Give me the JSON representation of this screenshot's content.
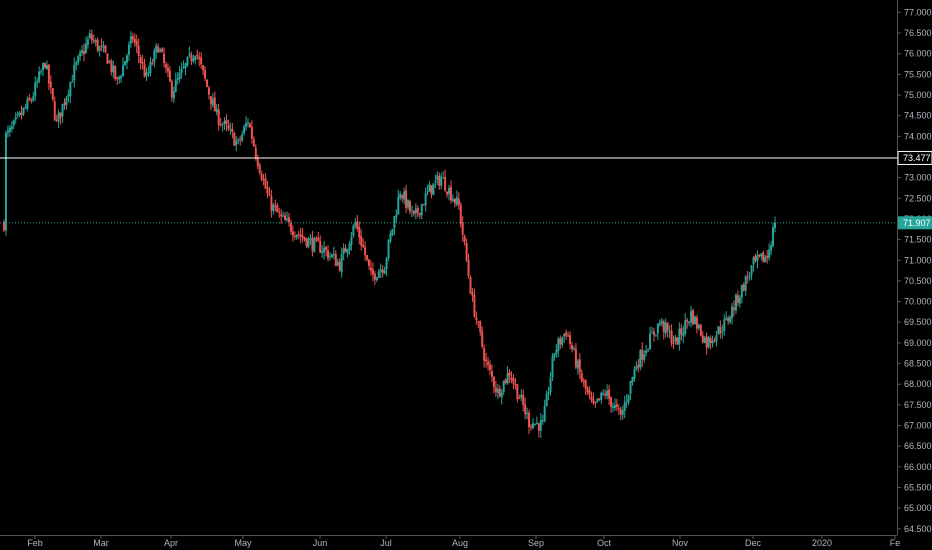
{
  "colors": {
    "background": "#000000",
    "up": "#26a69a",
    "down": "#ef5350",
    "level_line": "#ffffff",
    "price_line": "#26a69a",
    "axis_text": "#b2b5be",
    "axis_line": "#555555"
  },
  "chart_data": {
    "type": "candlestick",
    "title": "",
    "x_labels": [
      "Feb",
      "Mar",
      "Apr",
      "May",
      "Jun",
      "Jul",
      "Aug",
      "Sep",
      "Oct",
      "Nov",
      "Dec",
      "2020",
      "Fe"
    ],
    "y_ticks": [
      "77.000",
      "76.500",
      "76.000",
      "75.500",
      "75.000",
      "74.500",
      "74.000",
      "73.500",
      "73.000",
      "72.500",
      "72.000",
      "71.500",
      "71.000",
      "70.500",
      "70.000",
      "69.500",
      "69.000",
      "68.500",
      "68.000",
      "67.500",
      "67.000",
      "66.500",
      "66.000",
      "65.500",
      "65.000",
      "64.500"
    ],
    "y_range": [
      64.35,
      77.3
    ],
    "horizontal_level": {
      "value": 73.477,
      "label": "73.477"
    },
    "last_price": {
      "value": 71.907,
      "label": "71.907"
    },
    "anchors": [
      [
        74.0,
        1
      ],
      [
        74.1,
        3
      ],
      [
        74.9,
        14
      ],
      [
        75.8,
        21
      ],
      [
        74.3,
        27
      ],
      [
        75.6,
        36
      ],
      [
        76.4,
        44
      ],
      [
        75.9,
        53
      ],
      [
        75.3,
        58
      ],
      [
        76.4,
        66
      ],
      [
        75.4,
        73
      ],
      [
        76.2,
        79
      ],
      [
        75.1,
        86
      ],
      [
        76.1,
        98
      ],
      [
        75.2,
        104
      ],
      [
        74.5,
        109
      ],
      [
        73.8,
        120
      ],
      [
        74.4,
        125
      ],
      [
        73.6,
        129
      ],
      [
        72.4,
        136
      ],
      [
        72.0,
        142
      ],
      [
        71.6,
        152
      ],
      [
        71.4,
        158
      ],
      [
        71.3,
        163
      ],
      [
        70.9,
        172
      ],
      [
        71.9,
        180
      ],
      [
        71.3,
        184
      ],
      [
        70.6,
        188
      ],
      [
        70.9,
        195
      ],
      [
        72.7,
        203
      ],
      [
        72.0,
        210
      ],
      [
        72.7,
        218
      ],
      [
        73.0,
        224
      ],
      [
        72.3,
        233
      ],
      [
        70.0,
        240
      ],
      [
        68.5,
        247
      ],
      [
        67.8,
        253
      ],
      [
        68.3,
        259
      ],
      [
        67.1,
        269
      ],
      [
        67.0,
        276
      ],
      [
        68.8,
        282
      ],
      [
        69.3,
        288
      ],
      [
        68.1,
        296
      ],
      [
        67.4,
        302
      ],
      [
        67.8,
        308
      ],
      [
        67.2,
        316
      ],
      [
        68.5,
        324
      ],
      [
        69.5,
        336
      ],
      [
        69.0,
        344
      ],
      [
        69.7,
        352
      ],
      [
        69.0,
        360
      ],
      [
        69.5,
        370
      ],
      [
        70.0,
        375
      ],
      [
        70.9,
        384
      ],
      [
        71.1,
        391
      ],
      [
        71.9,
        395
      ]
    ],
    "bar_count": 396
  }
}
